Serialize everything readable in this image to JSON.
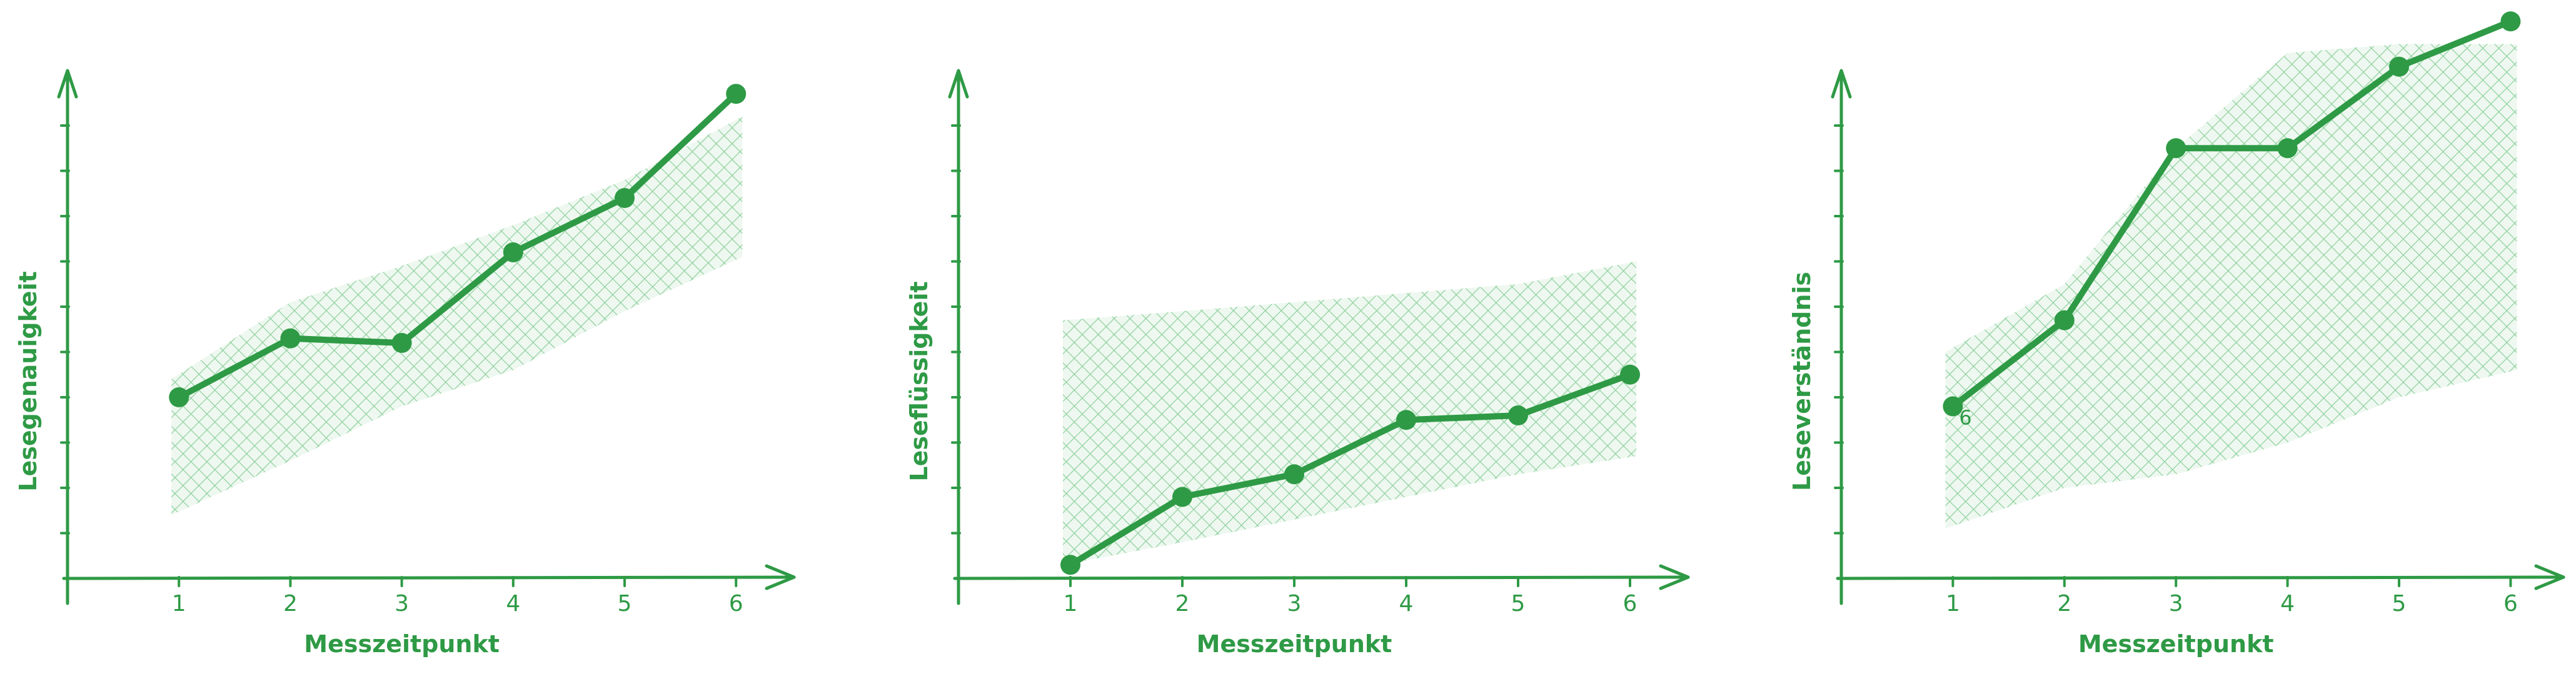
{
  "colors": {
    "accent": "#2e9a45",
    "band": "#8fd19e",
    "background": "#ffffff"
  },
  "chart_data": [
    {
      "type": "line",
      "x": [
        1,
        2,
        3,
        4,
        5,
        6
      ],
      "x_tick_labels": [
        "1",
        "2",
        "3",
        "4",
        "5",
        "6"
      ],
      "xlabel": "Messzeitpunkt",
      "ylabel": "Lesegenauigkeit",
      "xlim": [
        0,
        6.5
      ],
      "ylim": [
        0,
        11
      ],
      "y_ticks": [
        1,
        2,
        3,
        4,
        5,
        6,
        7,
        8,
        9,
        10
      ],
      "series": [
        {
          "values": [
            4.0,
            5.3,
            5.2,
            7.2,
            8.4,
            10.7
          ]
        }
      ],
      "band": {
        "lower": [
          1.4,
          2.6,
          3.8,
          4.6,
          5.9,
          7.1
        ],
        "upper": [
          4.4,
          6.1,
          6.9,
          7.8,
          8.8,
          10.2
        ]
      },
      "grid": false,
      "legend": "none"
    },
    {
      "type": "line",
      "x": [
        1,
        2,
        3,
        4,
        5,
        6
      ],
      "x_tick_labels": [
        "1",
        "2",
        "3",
        "4",
        "5",
        "6"
      ],
      "xlabel": "Messzeitpunkt",
      "ylabel": "Leseflüssigkeit",
      "xlim": [
        0,
        6.5
      ],
      "ylim": [
        0,
        11
      ],
      "y_ticks": [
        1,
        2,
        3,
        4,
        5,
        6,
        7,
        8,
        9,
        10
      ],
      "series": [
        {
          "values": [
            0.3,
            1.8,
            2.3,
            3.5,
            3.6,
            4.5
          ]
        }
      ],
      "band": {
        "lower": [
          0.3,
          0.8,
          1.3,
          1.8,
          2.3,
          2.7
        ],
        "upper": [
          5.7,
          5.9,
          6.1,
          6.3,
          6.5,
          7.0
        ]
      },
      "grid": false,
      "legend": "none"
    },
    {
      "type": "line",
      "x": [
        1,
        2,
        3,
        4,
        5,
        6
      ],
      "x_tick_labels": [
        "1",
        "2",
        "3",
        "4",
        "5",
        "6"
      ],
      "xlabel": "Messzeitpunkt",
      "ylabel": "Leseverständnis",
      "xlim": [
        0,
        6.5
      ],
      "ylim": [
        0,
        11
      ],
      "y_ticks": [
        1,
        2,
        3,
        4,
        5,
        6,
        7,
        8,
        9,
        10
      ],
      "series": [
        {
          "values": [
            3.8,
            5.7,
            9.5,
            9.5,
            11.3,
            12.3
          ]
        }
      ],
      "band": {
        "lower": [
          1.1,
          2.0,
          2.3,
          3.0,
          4.0,
          4.6
        ],
        "upper": [
          5.0,
          6.5,
          9.5,
          11.6,
          11.8,
          11.8
        ]
      },
      "annotations": [
        {
          "text": "6",
          "x": 1,
          "y": 3.4
        }
      ],
      "grid": false,
      "legend": "none"
    }
  ]
}
